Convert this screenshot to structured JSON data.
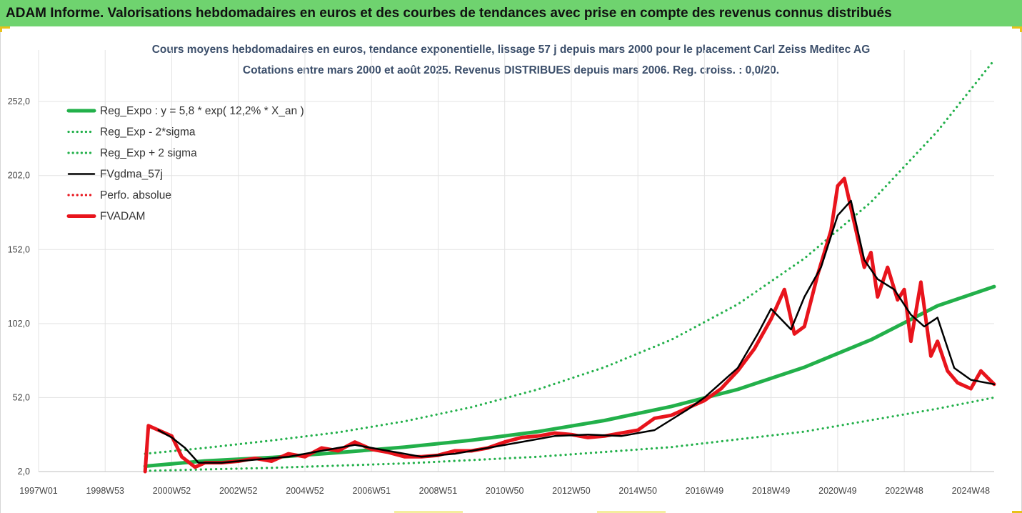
{
  "banner": {
    "text": "ADAM Informe. Valorisations hebdomadaires en euros et des courbes de tendances avec prise en compte des revenus connus distribués"
  },
  "colors": {
    "banner_bg": "#6fd36f",
    "green": "#22b04a",
    "black": "#000000",
    "red": "#e8141c",
    "title": "#3c4f6b"
  },
  "chart_data": {
    "type": "line",
    "title": "Cours moyens hebdomadaires en euros, tendance exponentielle, lissage 57 j depuis mars 2000 pour le placement Carl Zeiss Meditec AG",
    "subtitle": "Cotations entre mars 2000 et août 2025. Revenus DISTRIBUES depuis mars 2006. Reg. croiss. : 0,0/20.",
    "xlabel": "",
    "ylabel": "",
    "x_range": [
      1997.0,
      2025.7
    ],
    "ylim": [
      2.0,
      282.0
    ],
    "y_ticks": [
      "2,0",
      "52,0",
      "102,0",
      "152,0",
      "202,0",
      "252,0"
    ],
    "y_tick_values": [
      2,
      52,
      102,
      152,
      202,
      252
    ],
    "x_ticks": [
      "1997W01",
      "1998W53",
      "2000W52",
      "2002W52",
      "2004W52",
      "2006W51",
      "2008W51",
      "2010W50",
      "2012W50",
      "2014W50",
      "2016W49",
      "2018W49",
      "2020W49",
      "2022W48",
      "2024W48"
    ],
    "x_tick_values": [
      1997.0,
      1999.0,
      2001.0,
      2003.0,
      2005.0,
      2007.0,
      2009.0,
      2011.0,
      2013.0,
      2015.0,
      2017.0,
      2019.0,
      2021.0,
      2023.0,
      2025.0
    ],
    "grid": true,
    "legend_position": "top-left",
    "series": [
      {
        "name": "Reg_Expo : y = 5,8 * exp( 12,2% *  X_an )",
        "style": "solid-thick",
        "color": "#22b04a",
        "x": [
          2000.2,
          2002.0,
          2004.0,
          2006.0,
          2008.0,
          2010.0,
          2012.0,
          2014.0,
          2016.0,
          2018.0,
          2020.0,
          2022.0,
          2024.0,
          2025.7
        ],
        "y": [
          5.6,
          9.2,
          11.5,
          14.8,
          18.5,
          23.2,
          29.0,
          36.5,
          46.0,
          57.5,
          72.5,
          91.0,
          114.0,
          127.0
        ]
      },
      {
        "name": "Reg_Exp - 2*sigma",
        "style": "dotted",
        "color": "#22b04a",
        "x": [
          2000.2,
          2004.0,
          2008.0,
          2012.0,
          2016.0,
          2020.0,
          2024.0,
          2025.7
        ],
        "y": [
          2.5,
          4.5,
          7.5,
          12.0,
          18.5,
          29.0,
          44.5,
          52.0
        ]
      },
      {
        "name": "Reg_Exp + 2 sigma",
        "style": "dotted",
        "color": "#22b04a",
        "x": [
          2000.2,
          2002.0,
          2004.0,
          2006.0,
          2008.0,
          2010.0,
          2012.0,
          2014.0,
          2016.0,
          2018.0,
          2020.0,
          2022.0,
          2024.0,
          2025.7
        ],
        "y": [
          14.0,
          18.0,
          23.0,
          28.5,
          36.0,
          45.5,
          57.5,
          72.5,
          91.0,
          115.0,
          146.0,
          184.0,
          232.0,
          280.0
        ]
      },
      {
        "name": "FVgdma_57j",
        "style": "solid",
        "color": "#000000",
        "x": [
          2000.6,
          2001.0,
          2001.4,
          2001.8,
          2002.5,
          2003.5,
          2004.5,
          2005.5,
          2006.5,
          2007.5,
          2008.5,
          2009.5,
          2010.5,
          2011.5,
          2012.5,
          2013.5,
          2014.5,
          2015.5,
          2016.5,
          2017.0,
          2017.5,
          2018.0,
          2018.6,
          2019.0,
          2019.6,
          2020.0,
          2020.5,
          2021.0,
          2021.4,
          2021.8,
          2022.2,
          2022.7,
          2023.2,
          2023.6,
          2024.0,
          2024.5,
          2025.0,
          2025.7
        ],
        "y": [
          30,
          25,
          18,
          8,
          8,
          10,
          12,
          16,
          20,
          16,
          12,
          14,
          18,
          22,
          26,
          27,
          26,
          30,
          44,
          52,
          62,
          72,
          95,
          112,
          98,
          120,
          140,
          175,
          185,
          145,
          132,
          125,
          108,
          100,
          106,
          72,
          64,
          61
        ]
      },
      {
        "name": "Perfo. absolue",
        "style": "dotted",
        "color": "#e8141c",
        "x": [],
        "y": []
      },
      {
        "name": "FVADAM",
        "style": "solid-thick",
        "color": "#e8141c",
        "x": [
          2000.2,
          2000.3,
          2000.6,
          2001.0,
          2001.3,
          2001.7,
          2002.0,
          2002.5,
          2003.0,
          2003.5,
          2004.0,
          2004.5,
          2005.0,
          2005.5,
          2006.0,
          2006.5,
          2007.0,
          2007.5,
          2008.0,
          2008.5,
          2009.0,
          2009.5,
          2010.0,
          2010.5,
          2011.0,
          2011.5,
          2012.0,
          2012.5,
          2013.0,
          2013.5,
          2014.0,
          2014.5,
          2015.0,
          2015.5,
          2016.0,
          2016.5,
          2017.0,
          2017.5,
          2018.0,
          2018.5,
          2019.0,
          2019.4,
          2019.7,
          2020.0,
          2020.4,
          2020.8,
          2021.0,
          2021.2,
          2021.5,
          2021.8,
          2022.0,
          2022.2,
          2022.5,
          2022.8,
          2023.0,
          2023.2,
          2023.5,
          2023.8,
          2024.0,
          2024.3,
          2024.6,
          2025.0,
          2025.3,
          2025.7
        ],
        "y": [
          2,
          33,
          30,
          26,
          12,
          5,
          8,
          8,
          9,
          11,
          9,
          14,
          12,
          18,
          16,
          22,
          17,
          15,
          12,
          12,
          13,
          16,
          16,
          18,
          22,
          25,
          26,
          28,
          27,
          25,
          26,
          28,
          30,
          38,
          40,
          45,
          50,
          58,
          70,
          85,
          105,
          125,
          95,
          100,
          135,
          165,
          195,
          200,
          170,
          140,
          150,
          120,
          140,
          118,
          125,
          90,
          130,
          80,
          90,
          70,
          62,
          58,
          70,
          61
        ]
      }
    ]
  }
}
